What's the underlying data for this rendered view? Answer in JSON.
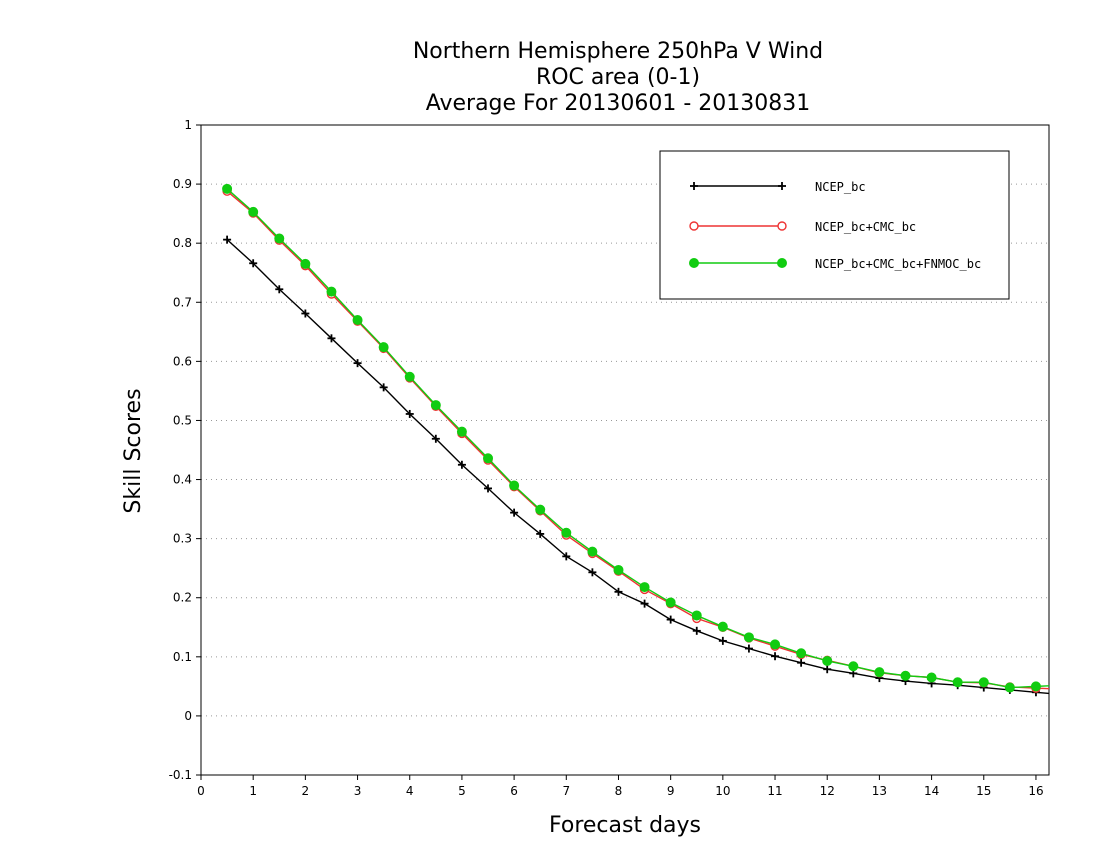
{
  "chart_data": {
    "type": "line",
    "title": [
      "Northern Hemisphere 250hPa V Wind",
      "ROC area (0-1)",
      "Average For 20130601 - 20130831"
    ],
    "xlabel": "Forecast days",
    "ylabel": "Skill Scores",
    "xlim": [
      0,
      16.25
    ],
    "ylim": [
      -0.1,
      1
    ],
    "xticks": [
      0,
      1,
      2,
      3,
      4,
      5,
      6,
      7,
      8,
      9,
      10,
      11,
      12,
      13,
      14,
      15,
      16
    ],
    "xtick_labels": [
      "0",
      "1",
      "2",
      "3",
      "4",
      "5",
      "6",
      "7",
      "8",
      "9",
      "10",
      "11",
      "12",
      "13",
      "14",
      "15",
      "16"
    ],
    "yticks": [
      -0.1,
      0,
      0.1,
      0.2,
      0.3,
      0.4,
      0.5,
      0.6,
      0.7,
      0.8,
      0.9,
      1
    ],
    "ytick_labels": [
      "-0.1",
      "0",
      "0.1",
      "0.2",
      "0.3",
      "0.4",
      "0.5",
      "0.6",
      "0.7",
      "0.8",
      "0.9",
      "1"
    ],
    "grid": true,
    "legend_position": "top-right",
    "x": [
      0.5,
      1,
      1.5,
      2,
      2.5,
      3,
      3.5,
      4,
      4.5,
      5,
      5.5,
      6,
      6.5,
      7,
      7.5,
      8,
      8.5,
      9,
      9.5,
      10,
      10.5,
      11,
      11.5,
      12,
      12.5,
      13,
      13.5,
      14,
      14.5,
      15,
      15.5,
      16
    ],
    "series": [
      {
        "name": "NCEP_bc",
        "color": "#000000",
        "marker": "plus",
        "values": [
          0.806,
          0.766,
          0.722,
          0.681,
          0.639,
          0.597,
          0.556,
          0.511,
          0.469,
          0.425,
          0.385,
          0.344,
          0.308,
          0.27,
          0.243,
          0.21,
          0.19,
          0.163,
          0.144,
          0.127,
          0.114,
          0.101,
          0.09,
          0.079,
          0.072,
          0.064,
          0.059,
          0.055,
          0.052,
          0.048,
          0.044,
          0.04
        ]
      },
      {
        "name": "NCEP_bc+CMC_bc",
        "color": "#ee3333",
        "marker": "circle-open",
        "values": [
          0.888,
          0.851,
          0.805,
          0.762,
          0.714,
          0.668,
          0.622,
          0.572,
          0.524,
          0.478,
          0.433,
          0.388,
          0.347,
          0.306,
          0.275,
          0.245,
          0.214,
          0.19,
          0.165,
          0.15,
          0.132,
          0.118,
          0.104,
          0.094,
          0.084,
          0.073,
          0.068,
          0.065,
          0.057,
          0.056,
          0.049,
          0.047
        ]
      },
      {
        "name": "NCEP_bc+CMC_bc+FNMOC_bc",
        "color": "#11cc11",
        "marker": "circle-filled",
        "values": [
          0.892,
          0.853,
          0.808,
          0.765,
          0.718,
          0.67,
          0.624,
          0.574,
          0.526,
          0.481,
          0.436,
          0.39,
          0.349,
          0.31,
          0.278,
          0.247,
          0.218,
          0.192,
          0.17,
          0.151,
          0.133,
          0.121,
          0.106,
          0.093,
          0.084,
          0.074,
          0.068,
          0.065,
          0.057,
          0.057,
          0.048,
          0.05
        ]
      }
    ]
  }
}
